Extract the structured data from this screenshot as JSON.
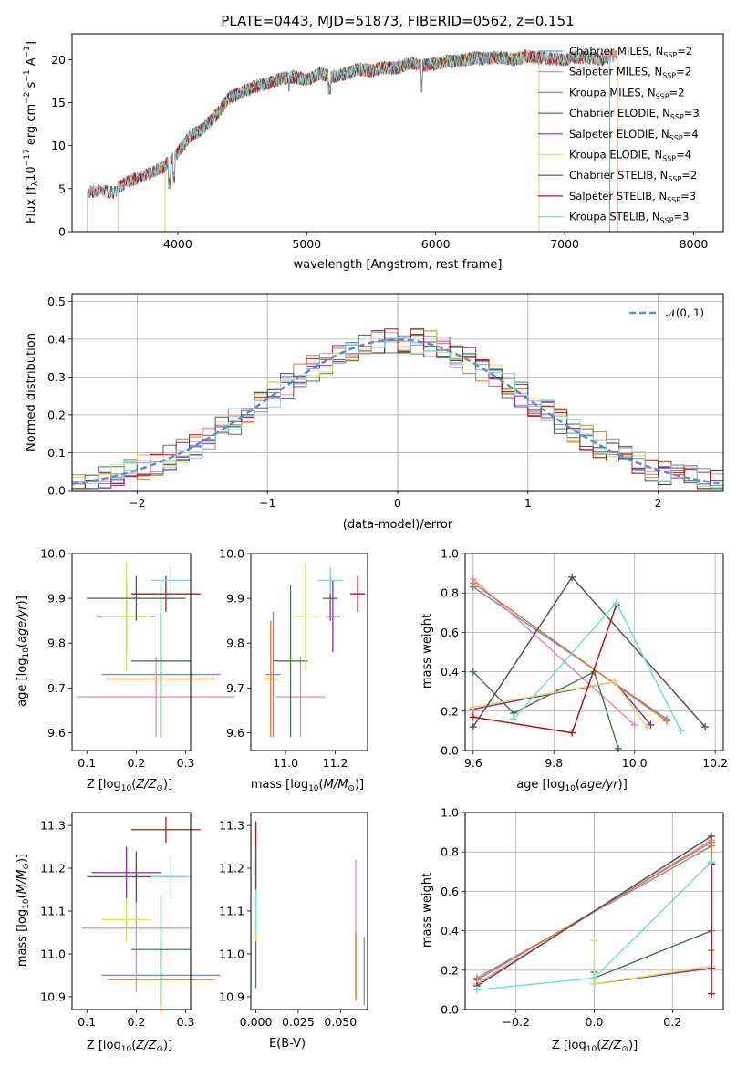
{
  "colors": {
    "chabrier_miles": "#6f8fd8",
    "salpeter_miles": "#e887c2",
    "kroupa_miles": "#e07b22",
    "chabrier_elodie": "#4a7a52",
    "salpeter_elodie": "#8a2bb8",
    "kroupa_elodie": "#d7e25a",
    "chabrier_stelib": "#555555",
    "salpeter_stelib": "#b01818",
    "kroupa_stelib": "#7fd8dc",
    "normal_curve": "#5b8bd9"
  },
  "chart_data": [
    {
      "id": "spectrum",
      "type": "line",
      "title": "PLATE=0443, MJD=51873, FIBERID=0562, z=0.151",
      "xlabel": "wavelength [Angstrom, rest frame]",
      "ylabel": "Flux [fλ10⁻¹⁷ erg cm⁻² s⁻¹ A⁻¹]",
      "xlim": [
        3180,
        8230
      ],
      "ylim": [
        0,
        23
      ],
      "xticks": [
        4000,
        5000,
        6000,
        7000,
        8000
      ],
      "yticks": [
        0,
        5,
        10,
        15,
        20
      ],
      "grid": false,
      "legend_placement": "top-right",
      "spectrum_x": [
        3300,
        3400,
        3500,
        3600,
        3700,
        3800,
        3900,
        4000,
        4100,
        4200,
        4300,
        4400,
        4500,
        4600,
        4700,
        4800,
        4900,
        5000,
        5100,
        5200,
        5300,
        5400,
        5500,
        5600,
        5700,
        5800,
        5900,
        6000,
        6100,
        6200,
        6300,
        6400,
        6500,
        6600,
        6700,
        6800,
        6900,
        7000,
        7100,
        7200,
        7300,
        7350
      ],
      "spectrum_y": [
        4.6,
        4.8,
        4.5,
        5.8,
        6.3,
        6.9,
        7.6,
        9.2,
        11.2,
        12.0,
        13.6,
        15.6,
        16.2,
        16.9,
        17.2,
        17.8,
        18.0,
        17.6,
        18.4,
        18.0,
        18.3,
        18.9,
        18.7,
        19.1,
        19.0,
        19.6,
        19.3,
        19.5,
        19.8,
        19.9,
        20.2,
        20.1,
        20.3,
        20.0,
        20.4,
        20.2,
        20.1,
        20.0,
        20.3,
        20.2,
        20.0,
        20.4
      ],
      "series": [
        {
          "name": "Chabrier MILES, N_SSP=2",
          "color": "chabrier_miles",
          "x_range": [
            3540,
            7410
          ]
        },
        {
          "name": "Salpeter MILES, N_SSP=2",
          "color": "salpeter_miles",
          "x_range": [
            3540,
            7410
          ]
        },
        {
          "name": "Kroupa MILES, N_SSP=2",
          "color": "kroupa_miles",
          "x_range": [
            3540,
            7410
          ]
        },
        {
          "name": "Chabrier ELODIE, N_SSP=3",
          "color": "chabrier_elodie",
          "x_range": [
            3900,
            6800
          ]
        },
        {
          "name": "Salpeter ELODIE, N_SSP=4",
          "color": "salpeter_elodie",
          "x_range": [
            3900,
            6800
          ]
        },
        {
          "name": "Kroupa ELODIE, N_SSP=4",
          "color": "kroupa_elodie",
          "x_range": [
            3900,
            6800
          ]
        },
        {
          "name": "Chabrier STELIB, N_SSP=2",
          "color": "chabrier_stelib",
          "x_range": [
            3300,
            7350
          ]
        },
        {
          "name": "Salpeter STELIB, N_SSP=3",
          "color": "salpeter_stelib",
          "x_range": [
            3300,
            7350
          ]
        },
        {
          "name": "Kroupa STELIB, N_SSP=3",
          "color": "kroupa_stelib",
          "x_range": [
            3300,
            7350
          ]
        }
      ]
    },
    {
      "id": "residuals",
      "type": "bar",
      "xlabel": "(data-model)/error",
      "ylabel": "Normed distribution",
      "xlim": [
        -2.5,
        2.5
      ],
      "ylim": [
        0,
        0.52
      ],
      "xticks": [
        -2,
        -1,
        0,
        1,
        2
      ],
      "yticks": [
        0.0,
        0.1,
        0.2,
        0.3,
        0.4,
        0.5
      ],
      "grid": true,
      "legend_placement": "top-right",
      "legend_label": "𝒩(0, 1)",
      "bin_width": 0.1,
      "bin_start": -2.5
    },
    {
      "id": "age_vs_Z",
      "type": "scatter",
      "xlabel": "Z [log₁₀(Z/Z⊙)]",
      "ylabel": "age  [log₁₀(age/yr)]",
      "xlim": [
        0.07,
        0.31
      ],
      "ylim": [
        9.56,
        10.0
      ],
      "xticks": [
        0.1,
        0.2,
        0.3
      ],
      "yticks": [
        9.6,
        9.7,
        9.8,
        9.9,
        10.0
      ],
      "points": [
        {
          "color": "chabrier_miles",
          "x": 0.25,
          "xerr": 0.12,
          "y": 9.73,
          "yerr": 0.14
        },
        {
          "color": "salpeter_miles",
          "x": 0.24,
          "xerr": 0.16,
          "y": 9.68,
          "yerr": 0.09
        },
        {
          "color": "kroupa_miles",
          "x": 0.25,
          "xerr": 0.11,
          "y": 9.72,
          "yerr": 0.13
        },
        {
          "color": "chabrier_elodie",
          "x": 0.25,
          "xerr": 0.06,
          "y": 9.76,
          "yerr": 0.17
        },
        {
          "color": "salpeter_elodie",
          "x": 0.18,
          "xerr": 0.06,
          "y": 9.86,
          "yerr": 0.08
        },
        {
          "color": "kroupa_elodie",
          "x": 0.18,
          "xerr": 0.05,
          "y": 9.86,
          "yerr": 0.12
        },
        {
          "color": "chabrier_stelib",
          "x": 0.2,
          "xerr": 0.1,
          "y": 9.9,
          "yerr": 0.05
        },
        {
          "color": "salpeter_stelib",
          "x": 0.26,
          "xerr": 0.07,
          "y": 9.91,
          "yerr": 0.04
        },
        {
          "color": "kroupa_stelib",
          "x": 0.27,
          "xerr": 0.04,
          "y": 9.94,
          "yerr": 0.03
        }
      ]
    },
    {
      "id": "age_vs_mass",
      "type": "scatter",
      "xlabel": "mass [log₁₀(M/M⊙)]",
      "ylabel": "",
      "xlim": [
        10.86,
        11.33
      ],
      "ylim": [
        9.56,
        10.0
      ],
      "xticks": [
        11.0,
        11.2
      ],
      "yticks": [
        9.6,
        9.7,
        9.8,
        9.9,
        10.0
      ],
      "points": [
        {
          "color": "chabrier_miles",
          "x": 10.95,
          "xerr": 0.03,
          "y": 9.73,
          "yerr": 0.14
        },
        {
          "color": "salpeter_miles",
          "x": 11.06,
          "xerr": 0.1,
          "y": 9.68,
          "yerr": 0.09
        },
        {
          "color": "kroupa_miles",
          "x": 10.94,
          "xerr": 0.03,
          "y": 9.72,
          "yerr": 0.13
        },
        {
          "color": "chabrier_elodie",
          "x": 11.02,
          "xerr": 0.07,
          "y": 9.76,
          "yerr": 0.17
        },
        {
          "color": "salpeter_elodie",
          "x": 11.19,
          "xerr": 0.03,
          "y": 9.86,
          "yerr": 0.08
        },
        {
          "color": "kroupa_elodie",
          "x": 11.08,
          "xerr": 0.05,
          "y": 9.86,
          "yerr": 0.12
        },
        {
          "color": "chabrier_stelib",
          "x": 11.18,
          "xerr": 0.03,
          "y": 9.9,
          "yerr": 0.05
        },
        {
          "color": "salpeter_stelib",
          "x": 11.29,
          "xerr": 0.03,
          "y": 9.91,
          "yerr": 0.04
        },
        {
          "color": "kroupa_stelib",
          "x": 11.18,
          "xerr": 0.05,
          "y": 9.94,
          "yerr": 0.03
        }
      ]
    },
    {
      "id": "weight_vs_age",
      "type": "line",
      "xlabel": "age  [log₁₀(age/yr)]",
      "ylabel": "mass weight",
      "xlim": [
        9.58,
        10.22
      ],
      "ylim": [
        0,
        1
      ],
      "xticks": [
        9.6,
        9.8,
        10.0,
        10.2
      ],
      "yticks": [
        0.0,
        0.2,
        0.4,
        0.6,
        0.8,
        1.0
      ],
      "grid": true,
      "series": [
        {
          "color": "chabrier_miles",
          "x": [
            9.6,
            10.08
          ],
          "y": [
            0.83,
            0.16
          ]
        },
        {
          "color": "salpeter_miles",
          "x": [
            9.6,
            10.0
          ],
          "y": [
            0.87,
            0.13
          ]
        },
        {
          "color": "kroupa_miles",
          "x": [
            9.6,
            10.08
          ],
          "y": [
            0.85,
            0.15
          ]
        },
        {
          "color": "chabrier_elodie",
          "x": [
            9.6,
            9.7,
            9.9,
            9.96
          ],
          "y": [
            0.4,
            0.19,
            0.4,
            0.01
          ]
        },
        {
          "color": "salpeter_elodie",
          "x": [
            9.6,
            9.95,
            10.04
          ],
          "y": [
            0.21,
            0.35,
            0.13
          ]
        },
        {
          "color": "kroupa_elodie",
          "x": [
            9.6,
            9.95,
            10.03
          ],
          "y": [
            0.22,
            0.35,
            0.12
          ]
        },
        {
          "color": "chabrier_stelib",
          "x": [
            9.6,
            9.845,
            10.175
          ],
          "y": [
            0.12,
            0.88,
            0.12
          ]
        },
        {
          "color": "salpeter_stelib",
          "x": [
            9.6,
            9.845,
            9.955
          ],
          "y": [
            0.17,
            0.09,
            0.74
          ]
        },
        {
          "color": "kroupa_stelib",
          "x": [
            9.7,
            9.955,
            10.115
          ],
          "y": [
            0.16,
            0.75,
            0.1
          ]
        }
      ]
    },
    {
      "id": "mass_vs_Z",
      "type": "scatter",
      "xlabel": "Z [log₁₀(Z/Z⊙)]",
      "ylabel": "mass [log₁₀(M/M⊙)]",
      "xlim": [
        0.07,
        0.31
      ],
      "ylim": [
        10.87,
        11.33
      ],
      "xticks": [
        0.1,
        0.2,
        0.3
      ],
      "yticks": [
        10.9,
        11.0,
        11.1,
        11.2,
        11.3
      ],
      "points": [
        {
          "color": "chabrier_miles",
          "x": 0.25,
          "xerr": 0.12,
          "y": 10.95,
          "yerr": 0.08
        },
        {
          "color": "salpeter_miles",
          "x": 0.2,
          "xerr": 0.11,
          "y": 11.06,
          "yerr": 0.15
        },
        {
          "color": "kroupa_miles",
          "x": 0.25,
          "xerr": 0.11,
          "y": 10.94,
          "yerr": 0.08
        },
        {
          "color": "chabrier_elodie",
          "x": 0.25,
          "xerr": 0.06,
          "y": 11.01,
          "yerr": 0.13
        },
        {
          "color": "salpeter_elodie",
          "x": 0.18,
          "xerr": 0.07,
          "y": 11.19,
          "yerr": 0.06
        },
        {
          "color": "kroupa_elodie",
          "x": 0.18,
          "xerr": 0.05,
          "y": 11.08,
          "yerr": 0.05
        },
        {
          "color": "chabrier_stelib",
          "x": 0.2,
          "xerr": 0.1,
          "y": 11.18,
          "yerr": 0.06
        },
        {
          "color": "salpeter_stelib",
          "x": 0.26,
          "xerr": 0.07,
          "y": 11.29,
          "yerr": 0.03
        },
        {
          "color": "kroupa_stelib",
          "x": 0.27,
          "xerr": 0.04,
          "y": 11.18,
          "yerr": 0.05
        }
      ]
    },
    {
      "id": "mass_vs_ebv",
      "type": "scatter",
      "xlabel": "E(B-V)",
      "ylabel": "",
      "xlim": [
        -0.003,
        0.066
      ],
      "ylim": [
        10.87,
        11.33
      ],
      "xticks": [
        0.0,
        0.025,
        0.05
      ],
      "xtick_labels": [
        "0.000",
        "0.025",
        "0.050"
      ],
      "yticks": [
        10.9,
        11.0,
        11.1,
        11.2,
        11.3
      ],
      "points": [
        {
          "color": "chabrier_miles",
          "x": 0.064,
          "xerr": 0,
          "y": 10.96,
          "yerr": 0.08
        },
        {
          "color": "salpeter_miles",
          "x": 0.059,
          "xerr": 0,
          "y": 11.06,
          "yerr": 0.16
        },
        {
          "color": "kroupa_miles",
          "x": 0.059,
          "xerr": 0,
          "y": 10.97,
          "yerr": 0.08
        },
        {
          "color": "chabrier_elodie",
          "x": 0.0,
          "xerr": 0,
          "y": 11.0,
          "yerr": 0.08
        },
        {
          "color": "salpeter_elodie",
          "x": 0.0,
          "xerr": 0,
          "y": 11.2,
          "yerr": 0.05
        },
        {
          "color": "kroupa_elodie",
          "x": 0.0,
          "xerr": 0,
          "y": 11.08,
          "yerr": 0.05
        },
        {
          "color": "chabrier_stelib",
          "x": 0.0,
          "xerr": 0,
          "y": 11.19,
          "yerr": 0.06
        },
        {
          "color": "salpeter_stelib",
          "x": 0.0,
          "xerr": 0,
          "y": 11.28,
          "yerr": 0.03
        },
        {
          "color": "kroupa_stelib",
          "x": 0.0,
          "xerr": 0,
          "y": 11.1,
          "yerr": 0.05
        }
      ]
    },
    {
      "id": "weight_vs_Z",
      "type": "line",
      "xlabel": "Z [log₁₀(Z/Z⊙)]",
      "ylabel": "mass weight",
      "xlim": [
        -0.33,
        0.33
      ],
      "ylim": [
        0,
        1
      ],
      "xticks": [
        -0.2,
        0.0,
        0.2
      ],
      "yticks": [
        0.0,
        0.2,
        0.4,
        0.6,
        0.8,
        1.0
      ],
      "grid": true,
      "series": [
        {
          "color": "chabrier_miles",
          "x": [
            -0.3,
            0.3
          ],
          "y": [
            0.16,
            0.83
          ]
        },
        {
          "color": "salpeter_miles",
          "x": [
            -0.3,
            0.3
          ],
          "y": [
            0.13,
            0.86
          ]
        },
        {
          "color": "kroupa_miles",
          "x": [
            -0.3,
            0.3,
            0.3
          ],
          "y": [
            0.15,
            0.85,
            0.3
          ]
        },
        {
          "color": "chabrier_elodie",
          "x": [
            0.0,
            0.0,
            0.3,
            0.3
          ],
          "y": [
            0.19,
            0.16,
            0.4,
            0.21
          ]
        },
        {
          "color": "salpeter_elodie",
          "x": [
            0.0,
            0.3,
            0.3
          ],
          "y": [
            0.13,
            0.21,
            0.74
          ]
        },
        {
          "color": "kroupa_elodie",
          "x": [
            0.0,
            0.0,
            0.3
          ],
          "y": [
            0.35,
            0.13,
            0.22
          ]
        },
        {
          "color": "chabrier_stelib",
          "x": [
            -0.3,
            0.3
          ],
          "y": [
            0.12,
            0.88
          ]
        },
        {
          "color": "salpeter_stelib",
          "x": [
            0.3,
            0.3
          ],
          "y": [
            0.74,
            0.08
          ]
        },
        {
          "color": "kroupa_stelib",
          "x": [
            -0.3,
            0.0,
            0.3
          ],
          "y": [
            0.1,
            0.16,
            0.75
          ]
        }
      ]
    }
  ]
}
